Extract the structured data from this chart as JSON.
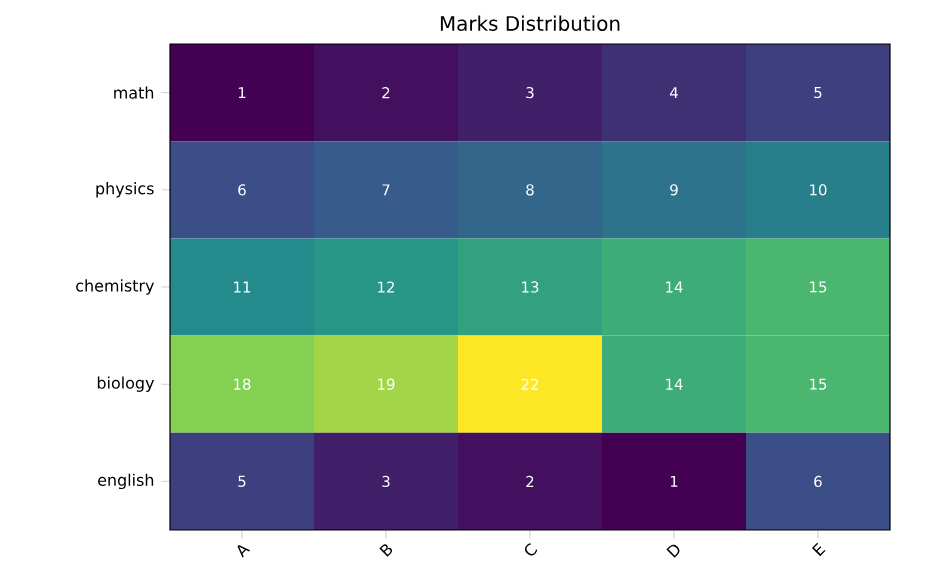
{
  "chart_data": {
    "type": "heatmap",
    "title": "Marks Distribution",
    "categories": [
      "A",
      "B",
      "C",
      "D",
      "E"
    ],
    "y_categories": [
      "math",
      "physics",
      "chemistry",
      "biology",
      "english"
    ],
    "cells": [
      [
        1,
        2,
        3,
        4,
        5
      ],
      [
        6,
        7,
        8,
        9,
        10
      ],
      [
        11,
        12,
        13,
        14,
        15
      ],
      [
        18,
        19,
        22,
        14,
        15
      ],
      [
        5,
        3,
        2,
        1,
        6
      ]
    ],
    "data_labels": true
  }
}
